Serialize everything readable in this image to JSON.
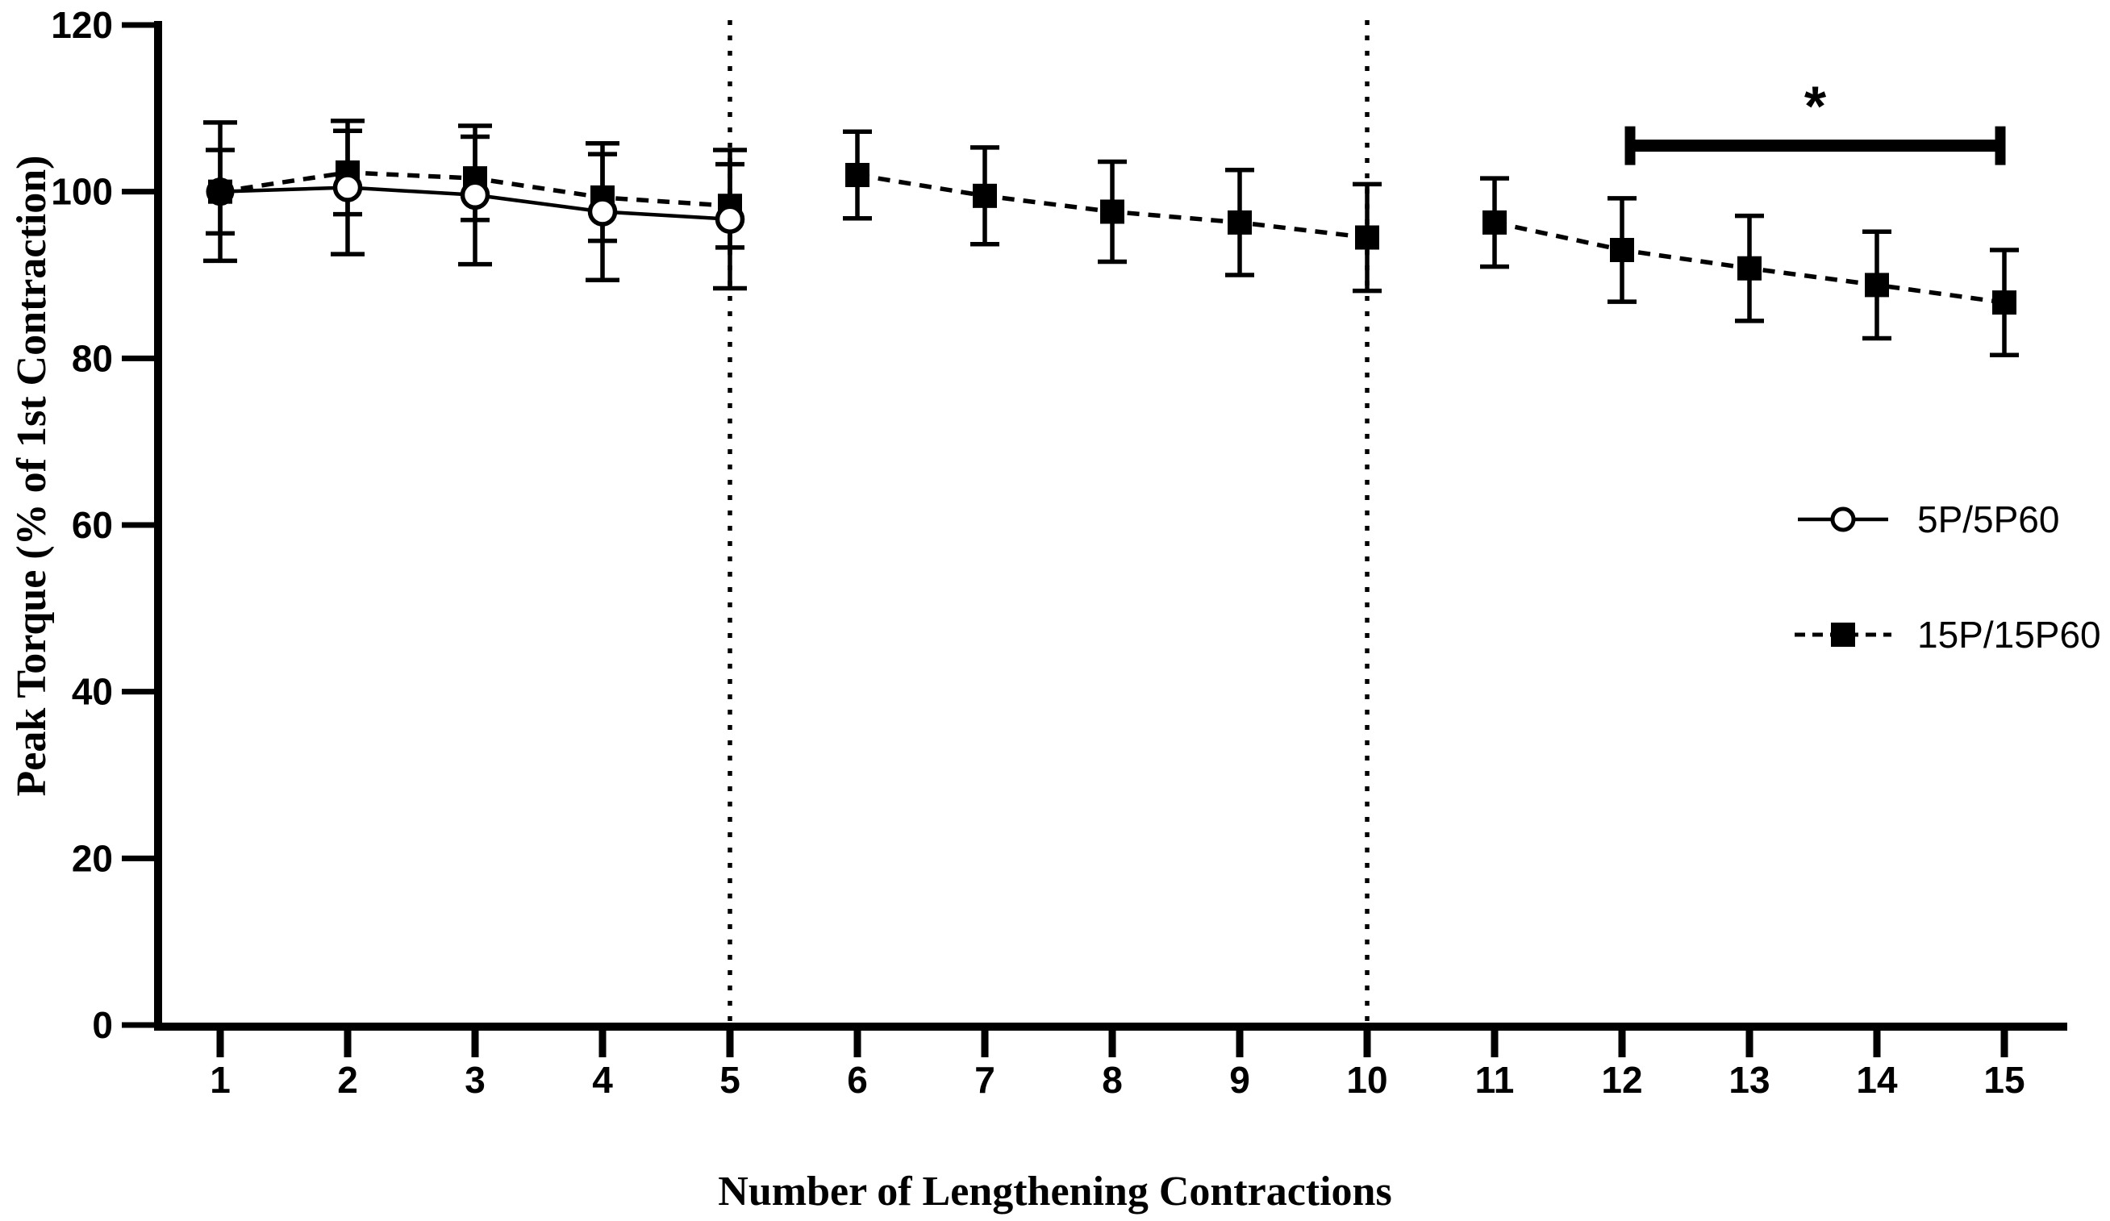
{
  "figure": {
    "background": "#ffffff",
    "ink_color": "#000000"
  },
  "chart_data": {
    "type": "line",
    "title": "",
    "xlabel": "Number of Lengthening Contractions",
    "ylabel": "Peak Torque (% of 1st Contraction)",
    "x_ticks": [
      1,
      2,
      3,
      4,
      5,
      6,
      7,
      8,
      9,
      10,
      11,
      12,
      13,
      14,
      15
    ],
    "y_ticks": [
      0,
      20,
      40,
      60,
      80,
      100,
      120
    ],
    "ylim": [
      0,
      120
    ],
    "grid": false,
    "legend_position": "right-middle",
    "series": [
      {
        "name": "5P/5P60",
        "marker": "open-circle",
        "line": "solid",
        "x": [
          1,
          2,
          3,
          4,
          5
        ],
        "values": [
          100.0,
          100.5,
          99.6,
          97.6,
          96.7
        ],
        "errors": [
          8.3,
          8.0,
          8.3,
          8.2,
          8.3
        ],
        "segments": [
          [
            1,
            5
          ]
        ]
      },
      {
        "name": "15P/15P60",
        "marker": "filled-square",
        "line": "dashed",
        "x": [
          1,
          2,
          3,
          4,
          5,
          6,
          7,
          8,
          9,
          10,
          11,
          12,
          13,
          14,
          15
        ],
        "values": [
          100.0,
          102.3,
          101.6,
          99.3,
          98.3,
          102.0,
          99.5,
          97.6,
          96.3,
          94.5,
          96.3,
          93.0,
          90.8,
          88.8,
          86.7
        ],
        "errors": [
          5.0,
          5.0,
          5.0,
          5.2,
          5.0,
          5.2,
          5.8,
          6.0,
          6.3,
          6.4,
          5.3,
          6.2,
          6.3,
          6.4,
          6.3
        ],
        "segments": [
          [
            1,
            5
          ],
          [
            6,
            10
          ],
          [
            11,
            15
          ]
        ]
      }
    ],
    "dividers_x": [
      5,
      10
    ],
    "significance_bracket": {
      "label": "*",
      "x_start": 12,
      "x_end": 15,
      "y_value": 106
    }
  },
  "legend": {
    "entries": [
      {
        "label": "5P/5P60",
        "marker": "open-circle",
        "line": "solid"
      },
      {
        "label": "15P/15P60",
        "marker": "filled-square",
        "line": "dashed"
      }
    ]
  }
}
